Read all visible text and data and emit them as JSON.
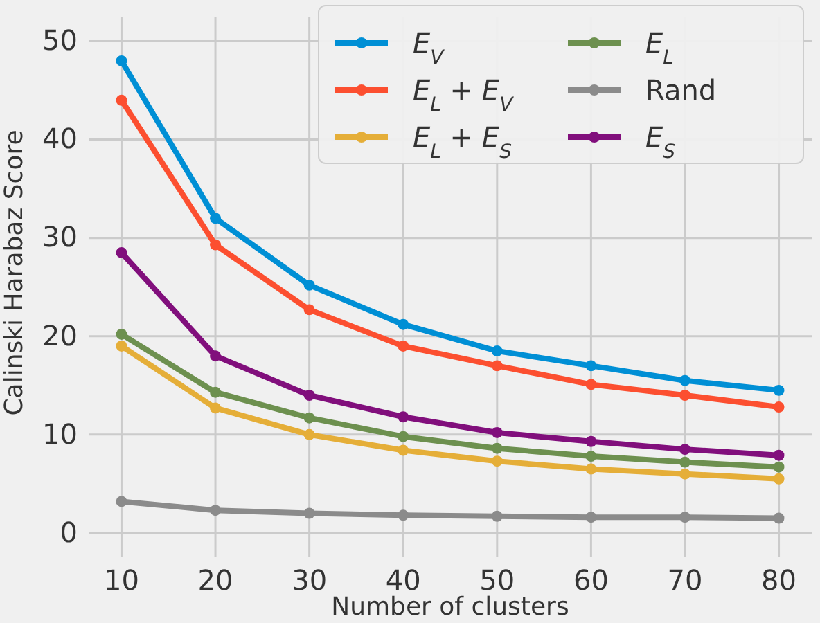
{
  "chart_data": {
    "type": "line",
    "xlabel": "Number of clusters",
    "ylabel": "Calinski Harabaz Score",
    "x": [
      10,
      20,
      30,
      40,
      50,
      60,
      70,
      80
    ],
    "series": [
      {
        "name": "E$_{V}$",
        "color": "#008fd5",
        "values": [
          48,
          32,
          25.2,
          21.2,
          18.5,
          17,
          15.5,
          14.5
        ]
      },
      {
        "name": "E$_{L}$ + E$_{V}$",
        "color": "#fc4f30",
        "values": [
          44,
          29.3,
          22.7,
          19,
          17,
          15.1,
          14,
          12.8
        ]
      },
      {
        "name": "E$_{L}$ + E$_{S}$",
        "color": "#e5ae38",
        "values": [
          19,
          12.7,
          10,
          8.4,
          7.3,
          6.5,
          6,
          5.5
        ]
      },
      {
        "name": "E$_{L}$",
        "color": "#6d904f",
        "values": [
          20.2,
          14.3,
          11.7,
          9.8,
          8.6,
          7.8,
          7.2,
          6.7
        ]
      },
      {
        "name": "Rand",
        "color": "#8b8b8b",
        "values": [
          3.2,
          2.3,
          2,
          1.8,
          1.7,
          1.6,
          1.6,
          1.5
        ]
      },
      {
        "name": "E$_{S}$",
        "color": "#810f7c",
        "values": [
          28.5,
          18,
          14,
          11.8,
          10.2,
          9.3,
          8.5,
          7.9
        ]
      }
    ],
    "xlim": [
      6.5,
      83.5
    ],
    "ylim": [
      -2.4,
      52.5
    ],
    "xticks": [
      10,
      20,
      30,
      40,
      50,
      60,
      70,
      80
    ],
    "yticks": [
      0,
      10,
      20,
      30,
      40,
      50
    ],
    "grid": true,
    "legend": "top right",
    "marker": "circle",
    "line_style": "solid"
  }
}
